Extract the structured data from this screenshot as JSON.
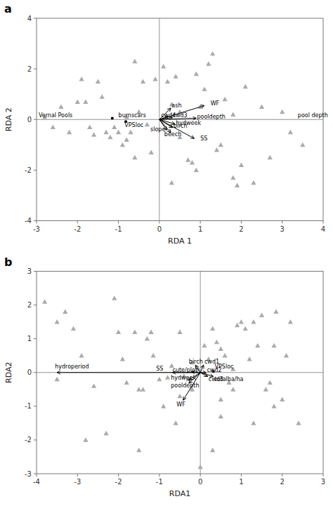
{
  "chart_data": [
    {
      "type": "scatter",
      "title": "a",
      "xlabel": "RDA 1",
      "ylabel": "RDA 2",
      "xlim": [
        -3,
        4
      ],
      "ylim": [
        -4,
        4
      ],
      "xticks": [
        -3,
        -2,
        -1,
        0,
        1,
        2,
        3,
        4
      ],
      "yticks": [
        -4,
        -2,
        0,
        2,
        4
      ],
      "grid": false,
      "color": "#aaaaaa",
      "marker": "triangle",
      "hlines": [
        0
      ],
      "vlines": [
        0
      ],
      "x": [
        -2.8,
        -2.6,
        -2.4,
        -2.2,
        -2.0,
        -1.9,
        -1.8,
        -1.7,
        -1.6,
        -1.5,
        -1.4,
        -1.3,
        -1.2,
        -1.1,
        -1.0,
        -0.9,
        -0.8,
        -0.7,
        -0.6,
        -0.6,
        -0.5,
        -0.4,
        -0.3,
        -0.1,
        0.1,
        0.2,
        0.3,
        0.4,
        0.5,
        0.7,
        0.8,
        0.9,
        1.0,
        1.1,
        1.2,
        1.3,
        1.4,
        1.5,
        1.6,
        1.8,
        1.9,
        2.0,
        2.1,
        2.3,
        2.5,
        2.7,
        3.0,
        3.2,
        3.5,
        -0.2,
        0.5,
        -0.8,
        0.3,
        1.8,
        0.9
      ],
      "values": [
        0.1,
        -0.3,
        0.5,
        -0.5,
        0.7,
        1.6,
        0.7,
        -0.3,
        -0.6,
        1.5,
        0.9,
        -0.5,
        -0.7,
        -0.3,
        -0.5,
        -1.0,
        -0.8,
        -0.5,
        2.3,
        -1.5,
        0.3,
        1.5,
        -0.2,
        1.6,
        2.1,
        1.5,
        0.6,
        1.7,
        0.3,
        -1.6,
        -1.7,
        -2.0,
        0.5,
        1.2,
        2.2,
        2.6,
        -1.2,
        -1.0,
        0.8,
        -2.3,
        -2.6,
        -1.8,
        1.3,
        -2.5,
        0.5,
        -1.5,
        0.3,
        -0.5,
        -1.0,
        -1.3,
        -0.7,
        0.1,
        -2.5,
        0.2,
        1.8
      ],
      "arrows": [
        {
          "label": "WF",
          "x": 1.1,
          "y": 0.55,
          "label_x": 1.25,
          "label_y": 0.65
        },
        {
          "label": "SS",
          "x": 0.85,
          "y": -0.75,
          "label_x": 1.0,
          "label_y": -0.75
        },
        {
          "label": "pooldepth",
          "x": 0.9,
          "y": 0.05,
          "label_x": 0.92,
          "label_y": 0.12
        },
        {
          "label": "ash",
          "x": 0.28,
          "y": 0.45,
          "label_x": 0.3,
          "label_y": 0.55
        },
        {
          "label": "cwd4",
          "x": 0.22,
          "y": 0.12,
          "label_x": 0.04,
          "label_y": 0.18
        },
        {
          "label": "cwd3",
          "x": 0.32,
          "y": 0.08,
          "label_x": 0.32,
          "label_y": 0.16
        },
        {
          "label": "hydweek",
          "x": 0.38,
          "y": -0.18,
          "label_x": 0.4,
          "label_y": -0.12
        },
        {
          "label": "birch",
          "x": 0.32,
          "y": -0.32,
          "label_x": 0.34,
          "label_y": -0.25
        },
        {
          "label": "slope",
          "x": 0.18,
          "y": -0.42,
          "label_x": -0.22,
          "label_y": -0.38
        },
        {
          "label": "beech",
          "x": 0.28,
          "y": -0.52,
          "label_x": 0.12,
          "label_y": -0.58
        }
      ],
      "annotations": [
        {
          "text": "Vernal Pools",
          "x": -2.95,
          "y": 0.18
        },
        {
          "text": "burnscars",
          "x": -1.0,
          "y": 0.18
        },
        {
          "text": "VPSloc",
          "x": -0.85,
          "y": -0.22
        },
        {
          "text": "pool depth",
          "x": 3.38,
          "y": 0.18
        }
      ],
      "sites": {
        "x": [
          -1.15,
          -0.82
        ],
        "values": [
          0.05,
          -0.08
        ]
      }
    },
    {
      "type": "scatter",
      "title": "b",
      "xlabel": "RDA1",
      "ylabel": "RDA2",
      "xlim": [
        -4,
        3
      ],
      "ylim": [
        -3,
        3
      ],
      "xticks": [
        -4,
        -3,
        -2,
        -1,
        0,
        1,
        2,
        3
      ],
      "yticks": [
        -3,
        -2,
        -1,
        0,
        1,
        2,
        3
      ],
      "grid": false,
      "color": "#aaaaaa",
      "marker": "triangle",
      "hlines": [
        0
      ],
      "vlines": [
        0
      ],
      "x": [
        -3.8,
        -3.5,
        -3.3,
        -3.1,
        -2.9,
        -2.6,
        -2.3,
        -2.1,
        -2.0,
        -1.9,
        -1.8,
        -1.6,
        -1.5,
        -1.4,
        -1.3,
        -1.2,
        -1.15,
        -1.0,
        -0.9,
        -0.8,
        -0.7,
        -0.6,
        -0.5,
        -0.4,
        -0.3,
        -0.2,
        -0.2,
        -0.05,
        0.1,
        0.2,
        0.3,
        0.4,
        0.5,
        0.5,
        0.6,
        0.7,
        0.8,
        0.8,
        0.9,
        1.0,
        1.1,
        1.2,
        1.3,
        1.3,
        1.4,
        1.5,
        1.6,
        1.7,
        1.8,
        1.85,
        2.0,
        2.1,
        2.2,
        2.4,
        -0.5,
        0.0,
        0.3,
        -3.5,
        -2.8,
        0.5,
        1.8,
        -1.5
      ],
      "values": [
        2.1,
        1.5,
        1.8,
        1.3,
        0.5,
        -0.4,
        -1.8,
        2.2,
        1.2,
        0.4,
        -0.3,
        1.2,
        -2.3,
        -0.5,
        1.0,
        1.2,
        0.5,
        -0.2,
        -1.0,
        -0.15,
        0.2,
        -1.5,
        1.2,
        -0.1,
        -0.2,
        0.3,
        -0.5,
        0.1,
        0.8,
        0.4,
        1.3,
        0.9,
        0.7,
        -0.8,
        0.5,
        -0.3,
        -0.5,
        0.1,
        1.4,
        1.5,
        1.3,
        0.4,
        1.5,
        -1.5,
        0.8,
        1.7,
        -0.5,
        -0.3,
        0.8,
        1.8,
        -0.8,
        0.5,
        1.5,
        -1.5,
        -0.7,
        -2.8,
        -2.3,
        -0.2,
        -2.0,
        -1.3,
        -1.0,
        -0.5
      ],
      "arrows": [
        {
          "label": "hydroperiod",
          "x": -3.5,
          "y": 0.0,
          "label_x": -3.55,
          "label_y": 0.18
        },
        {
          "label": "SS",
          "x": -0.68,
          "y": 0.0,
          "label_x": -1.08,
          "label_y": 0.12
        },
        {
          "label": "WF",
          "x": -0.42,
          "y": -0.82,
          "label_x": -0.58,
          "label_y": -0.95
        },
        {
          "label": "birch",
          "x": -0.12,
          "y": 0.22,
          "label_x": -0.28,
          "label_y": 0.32
        },
        {
          "label": "cute/plot",
          "x": -0.22,
          "y": 0.02,
          "label_x": -0.68,
          "label_y": 0.08
        },
        {
          "label": "cwd1",
          "x": 0.08,
          "y": 0.22,
          "label_x": 0.1,
          "label_y": 0.32
        },
        {
          "label": "cwd2",
          "x": 0.14,
          "y": 0.0,
          "label_x": 0.16,
          "label_y": 0.08
        },
        {
          "label": "cwd3",
          "x": 0.18,
          "y": -0.12,
          "label_x": 0.2,
          "label_y": -0.2
        },
        {
          "label": "hydweek",
          "x": -0.28,
          "y": -0.22,
          "label_x": -0.72,
          "label_y": -0.15
        },
        {
          "label": "pooldepth",
          "x": -0.28,
          "y": -0.32,
          "label_x": -0.72,
          "label_y": -0.38
        },
        {
          "label": "totalba/ha",
          "x": 0.32,
          "y": -0.12,
          "label_x": 0.35,
          "label_y": -0.2
        }
      ],
      "annotations": [
        {
          "text": "VPSloc",
          "x": 0.35,
          "y": 0.18
        }
      ],
      "sites": {
        "x": [
          0.32
        ],
        "values": [
          0.03
        ]
      }
    }
  ]
}
